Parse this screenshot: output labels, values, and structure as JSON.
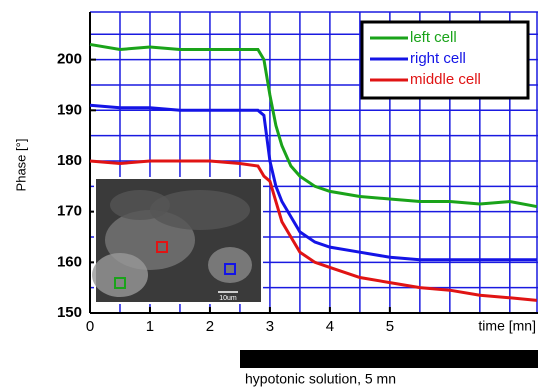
{
  "chart_data": {
    "type": "line",
    "y_label": "Phase [°]",
    "x_label": "time [mn]",
    "annotation": "hypotonic solution, 5 mn",
    "inset_scale_label": "10um",
    "x": [
      0,
      0.5,
      1,
      1.5,
      2,
      2.5,
      2.8,
      2.9,
      3,
      3.1,
      3.2,
      3.35,
      3.5,
      3.75,
      4,
      4.5,
      5,
      5.5,
      6,
      6.5,
      7,
      7.45
    ],
    "series": [
      {
        "name": "left cell",
        "color": "#1aa31a",
        "values": [
          203,
          202,
          202.5,
          202,
          202,
          202,
          202,
          200,
          193,
          187,
          183,
          179,
          177,
          175,
          174,
          173,
          172.5,
          172,
          172,
          171.5,
          172,
          171
        ]
      },
      {
        "name": "right cell",
        "color": "#1414e6",
        "values": [
          191,
          190.5,
          190.5,
          190,
          190,
          190,
          190,
          189,
          180,
          175,
          172,
          169,
          166,
          164,
          163,
          162,
          161,
          160.5,
          160.5,
          160.5,
          160.5,
          160.5
        ]
      },
      {
        "name": "middle cell",
        "color": "#e01414",
        "values": [
          180,
          179.5,
          180,
          180,
          180,
          179.5,
          179,
          177,
          176,
          172,
          168,
          165,
          162,
          160,
          159,
          157,
          156,
          155,
          154.5,
          153.5,
          153,
          152.5
        ]
      }
    ],
    "xlim": [
      0,
      7.47
    ],
    "ylim": [
      150,
      209.4
    ],
    "xticks": [
      0,
      1,
      2,
      3,
      4,
      5
    ],
    "yticks": [
      150,
      160,
      170,
      180,
      190,
      200
    ],
    "xgrid": [
      0.5,
      1,
      1.5,
      2,
      2.5,
      3,
      3.5,
      4,
      4.5,
      5,
      5.5,
      6,
      6.5,
      7
    ],
    "ygrid": [
      155,
      160,
      165,
      170,
      175,
      180,
      185,
      190,
      195,
      200,
      205
    ],
    "grid_color": "#1a1ae0",
    "legend": "upper right"
  }
}
